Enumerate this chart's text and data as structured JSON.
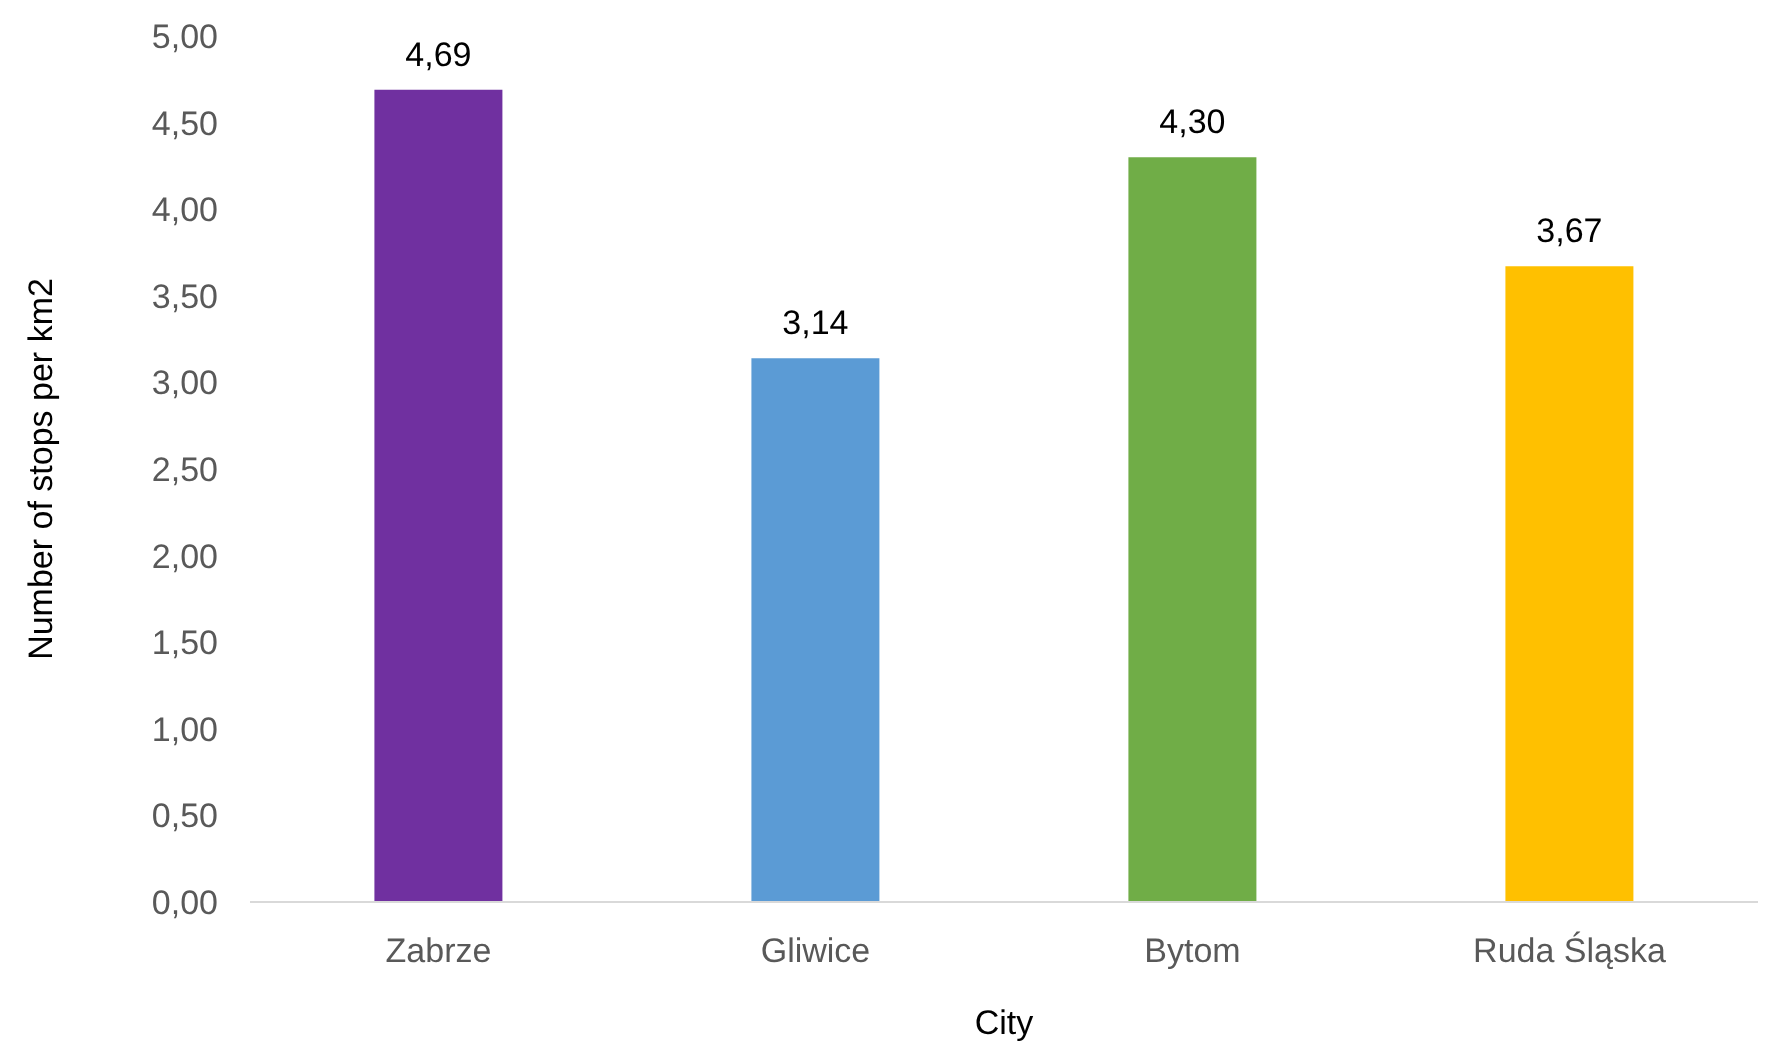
{
  "chart_data": {
    "type": "bar",
    "xlabel": "City",
    "ylabel": "Number of stops per km2",
    "categories": [
      "Zabrze",
      "Gliwice",
      "Bytom",
      "Ruda Śląska"
    ],
    "values": [
      4.69,
      3.14,
      4.3,
      3.67
    ],
    "colors": [
      "#7030a0",
      "#5b9bd5",
      "#70ad47",
      "#ffc000"
    ],
    "value_labels": [
      "4,69",
      "3,14",
      "4,30",
      "3,67"
    ],
    "ylim": [
      0,
      5
    ],
    "yticks": [
      {
        "value": 0,
        "label": "0,00"
      },
      {
        "value": 0.5,
        "label": "0,50"
      },
      {
        "value": 1,
        "label": "1,00"
      },
      {
        "value": 1.5,
        "label": "1,50"
      },
      {
        "value": 2,
        "label": "2,00"
      },
      {
        "value": 2.5,
        "label": "2,50"
      },
      {
        "value": 3,
        "label": "3,00"
      },
      {
        "value": 3.5,
        "label": "3,50"
      },
      {
        "value": 4,
        "label": "4,00"
      },
      {
        "value": 4.5,
        "label": "4,50"
      },
      {
        "value": 5,
        "label": "5,00"
      }
    ],
    "grid": false,
    "legend": false
  }
}
